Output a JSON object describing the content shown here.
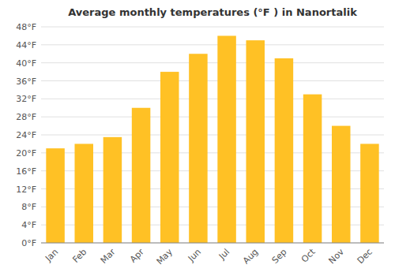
{
  "chart_data": {
    "type": "bar",
    "title": "Average monthly temperatures (°F ) in Nanortalik",
    "categories": [
      "Jan",
      "Feb",
      "Mar",
      "Apr",
      "May",
      "Jun",
      "Jul",
      "Aug",
      "Sep",
      "Oct",
      "Nov",
      "Dec"
    ],
    "values": [
      21.0,
      22.0,
      23.5,
      30.0,
      38.0,
      42.0,
      46.0,
      45.0,
      41.0,
      33.0,
      26.0,
      22.0
    ],
    "color": "#FFC125",
    "ylim": [
      0,
      48
    ],
    "yticks": [
      {
        "value": 0,
        "label": "0°F"
      },
      {
        "value": 4,
        "label": "4°F"
      },
      {
        "value": 8,
        "label": "8°F"
      },
      {
        "value": 12,
        "label": "12°F"
      },
      {
        "value": 16,
        "label": "16°F"
      },
      {
        "value": 20,
        "label": "20°F"
      },
      {
        "value": 24,
        "label": "24°F"
      },
      {
        "value": 28,
        "label": "28°F"
      },
      {
        "value": 32,
        "label": "32°F"
      },
      {
        "value": 36,
        "label": "36°F"
      },
      {
        "value": 40,
        "label": "40°F"
      },
      {
        "value": 44,
        "label": "44°F"
      },
      {
        "value": 48,
        "label": "48°F"
      }
    ],
    "grid": true
  }
}
